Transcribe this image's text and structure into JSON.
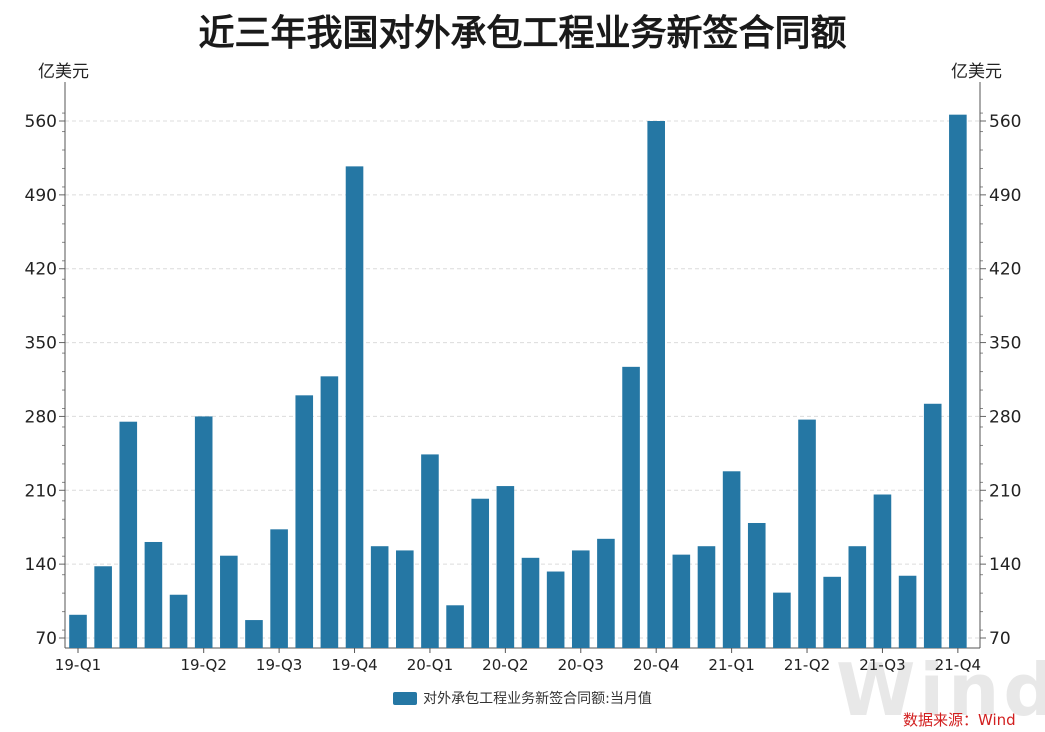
{
  "chart_data": {
    "type": "bar",
    "title": "近三年我国对外承包工程业务新签合同额",
    "ylabel_left": "亿美元",
    "ylabel_right": "亿美元",
    "ylim": [
      70,
      560
    ],
    "yticks": [
      70,
      140,
      210,
      280,
      350,
      420,
      490,
      560
    ],
    "xtick_labels": [
      "19-Q1",
      "19-Q2",
      "19-Q3",
      "19-Q4",
      "20-Q1",
      "20-Q2",
      "20-Q3",
      "20-Q4",
      "21-Q1",
      "21-Q2",
      "21-Q3",
      "21-Q4"
    ],
    "grid": "horizontal-dashed",
    "legend_position": "bottom",
    "series": [
      {
        "name": "对外承包工程业务新签合同额:当月值",
        "color": "#2577a4",
        "values": [
          92,
          138,
          275,
          161,
          111,
          280,
          148,
          87,
          173,
          300,
          318,
          517,
          157,
          153,
          244,
          101,
          202,
          214,
          146,
          133,
          153,
          164,
          327,
          560,
          149,
          157,
          228,
          179,
          113,
          277,
          128,
          157,
          206,
          129,
          292,
          566
        ]
      }
    ]
  },
  "source": "数据来源：Wind",
  "watermark": "Wind"
}
